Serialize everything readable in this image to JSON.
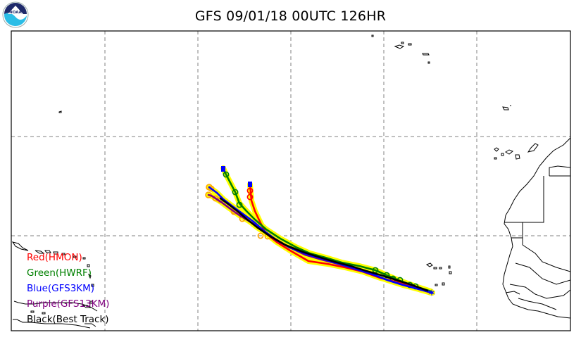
{
  "title": "GFS 09/01/18 00UTC 126HR",
  "logo": {
    "icon": "noaa-logo",
    "text": "NOAA",
    "colors": {
      "navy": "#1f2a6b",
      "cyan": "#2bbde6"
    }
  },
  "legend": [
    {
      "label": "Red(HMON)",
      "color": "#ff0000"
    },
    {
      "label": "Green(HWRF)",
      "color": "#008000"
    },
    {
      "label": "Blue(GFS3KM)",
      "color": "#0000ff"
    },
    {
      "label": "Purple(GFS13KM)",
      "color": "#800080"
    },
    {
      "label": "Black(Best Track)",
      "color": "#000000"
    }
  ],
  "map": {
    "grid": "dashed",
    "grid_color": "#808080",
    "highlight_color": "#ffff00",
    "marker_outline": "#ffa500"
  }
}
